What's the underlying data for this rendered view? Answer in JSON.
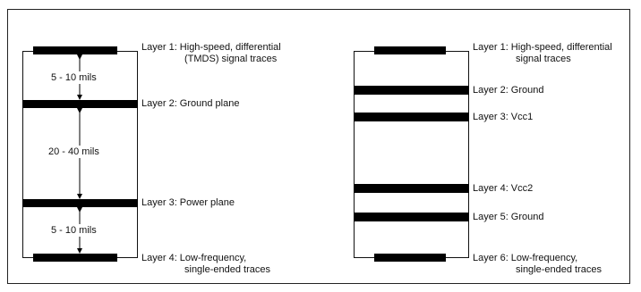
{
  "left_stack": {
    "labels": [
      {
        "line1": "Layer 1:  High-speed, differential",
        "line2": "(TMDS) signal traces"
      },
      {
        "line1": "Layer 2:  Ground plane",
        "line2": ""
      },
      {
        "line1": "Layer 3:  Power plane",
        "line2": ""
      },
      {
        "line1": "Layer 4:  Low-frequency,",
        "line2": "single-ended traces"
      }
    ],
    "dimensions": [
      "5 - 10 mils",
      "20 - 40 mils",
      "5 - 10 mils"
    ]
  },
  "right_stack": {
    "labels": [
      {
        "line1": "Layer 1:  High-speed, differential",
        "line2": "signal traces"
      },
      {
        "line1": "Layer 2:  Ground",
        "line2": ""
      },
      {
        "line1": "Layer 3:  Vcc1",
        "line2": ""
      },
      {
        "line1": "Layer 4:  Vcc2",
        "line2": ""
      },
      {
        "line1": "Layer 5:  Ground",
        "line2": ""
      },
      {
        "line1": "Layer 6:  Low-frequency,",
        "line2": "single-ended traces"
      }
    ]
  }
}
